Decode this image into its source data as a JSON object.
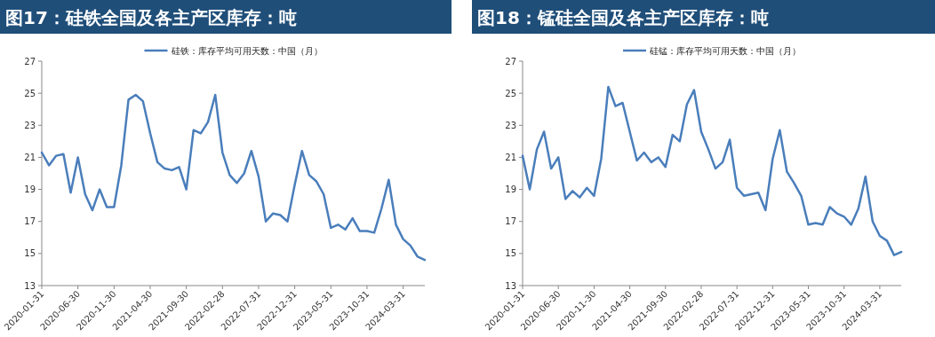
{
  "chart_data": [
    {
      "type": "line",
      "title": "图17：硅铁全国及各主产区库存：吨",
      "categories": [
        "2020-01-31",
        null,
        null,
        null,
        null,
        "2020-06-30",
        null,
        null,
        null,
        null,
        "2020-11-30",
        null,
        null,
        null,
        null,
        "2021-04-30",
        null,
        null,
        null,
        null,
        "2021-09-30",
        null,
        null,
        null,
        null,
        "2022-02-28",
        null,
        null,
        null,
        null,
        "2022-07-31",
        null,
        null,
        null,
        null,
        "2022-12-31",
        null,
        null,
        null,
        null,
        "2023-05-31",
        null,
        null,
        null,
        null,
        "2023-10-31",
        null,
        null,
        null,
        null,
        "2024-03-31",
        null,
        null,
        null
      ],
      "series": [
        {
          "name": "硅铁：库存平均可用天数：中国（月）",
          "color": "#4a7ebb",
          "values": [
            21.3,
            20.5,
            21.1,
            21.2,
            18.8,
            21.0,
            18.7,
            17.7,
            19.0,
            17.9,
            17.9,
            20.5,
            24.6,
            24.9,
            24.5,
            22.5,
            20.7,
            20.3,
            20.2,
            20.4,
            19.0,
            22.7,
            22.5,
            23.2,
            24.9,
            21.3,
            19.9,
            19.4,
            20.0,
            21.4,
            19.8,
            17.0,
            17.5,
            17.4,
            17.0,
            19.3,
            21.4,
            19.9,
            19.5,
            18.7,
            16.6,
            16.8,
            16.5,
            17.2,
            16.4,
            16.4,
            16.3,
            17.8,
            19.6,
            16.8,
            15.9,
            15.5,
            14.8,
            14.6
          ]
        }
      ],
      "ylim": [
        13,
        27
      ],
      "yticks": [
        13,
        15,
        17,
        19,
        21,
        23,
        25,
        27
      ],
      "legend": "top",
      "marker": "none",
      "line_style": "solid"
    },
    {
      "type": "line",
      "title": "图18：锰硅全国及各主产区库存：吨",
      "categories": [
        "2020-01-31",
        null,
        null,
        null,
        null,
        "2020-06-30",
        null,
        null,
        null,
        null,
        "2020-11-30",
        null,
        null,
        null,
        null,
        "2021-04-30",
        null,
        null,
        null,
        null,
        "2021-09-30",
        null,
        null,
        null,
        null,
        "2022-02-28",
        null,
        null,
        null,
        null,
        "2022-07-31",
        null,
        null,
        null,
        null,
        "2022-12-31",
        null,
        null,
        null,
        null,
        "2023-05-31",
        null,
        null,
        null,
        null,
        "2023-10-31",
        null,
        null,
        null,
        null,
        "2024-03-31",
        null,
        null,
        null
      ],
      "series": [
        {
          "name": "硅锰：库存平均可用天数：中国（月）",
          "color": "#4a7ebb",
          "values": [
            21.1,
            19.0,
            21.5,
            22.6,
            20.3,
            21.0,
            18.4,
            18.9,
            18.5,
            19.1,
            18.6,
            20.9,
            25.4,
            24.2,
            24.4,
            22.6,
            20.8,
            21.3,
            20.7,
            21.0,
            20.4,
            22.4,
            22.0,
            24.3,
            25.2,
            22.6,
            21.5,
            20.3,
            20.7,
            22.1,
            19.1,
            18.6,
            18.7,
            18.8,
            17.7,
            20.9,
            22.7,
            20.1,
            19.4,
            18.6,
            16.8,
            16.9,
            16.8,
            17.9,
            17.5,
            17.3,
            16.8,
            17.8,
            19.8,
            17.0,
            16.1,
            15.8,
            14.9,
            15.1
          ]
        }
      ],
      "ylim": [
        13,
        27
      ],
      "yticks": [
        13,
        15,
        17,
        19,
        21,
        23,
        25,
        27
      ],
      "legend": "top",
      "marker": "none",
      "line_style": "solid"
    }
  ]
}
